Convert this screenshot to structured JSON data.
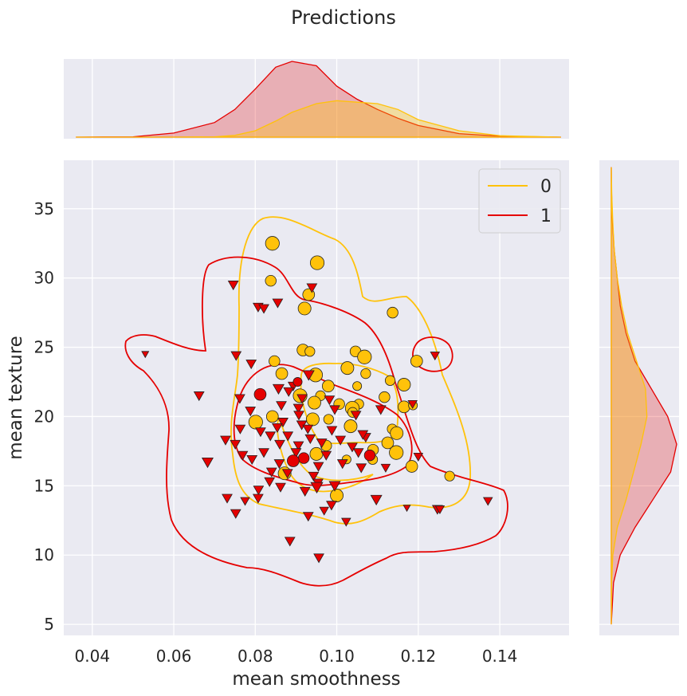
{
  "chart_data": {
    "type": "scatter",
    "title": "Predictions",
    "xlabel": "mean smoothness",
    "ylabel": "mean texture",
    "xlim": [
      0.033,
      0.157
    ],
    "ylim": [
      4.2,
      38.5
    ],
    "xticks": [
      "0.04",
      "0.06",
      "0.08",
      "0.10",
      "0.12",
      "0.14"
    ],
    "xtick_values": [
      0.04,
      0.06,
      0.08,
      0.1,
      0.12,
      0.14
    ],
    "yticks": [
      "5",
      "10",
      "15",
      "20",
      "25",
      "30",
      "35"
    ],
    "ytick_values": [
      5,
      10,
      15,
      20,
      25,
      30,
      35
    ],
    "grid": true,
    "legend": {
      "placement": "top-right",
      "entries": [
        {
          "label": "0",
          "color": "#ffc20a"
        },
        {
          "label": "1",
          "color": "#e50000"
        }
      ]
    },
    "marker_legend_note": "circle = correct-class marker, triangle = other; size varies",
    "colors": {
      "class0": "#ffc20a",
      "class1": "#e50000",
      "background": "#eaeaf2"
    },
    "series": [
      {
        "name": "0",
        "color": "#ffc20a",
        "points": [
          [
            0.0842,
            32.5,
            14,
            "o"
          ],
          [
            0.0952,
            31.1,
            14,
            "o"
          ],
          [
            0.0838,
            29.8,
            11,
            "o"
          ],
          [
            0.0931,
            28.8,
            12,
            "o"
          ],
          [
            0.0921,
            27.8,
            13,
            "o"
          ],
          [
            0.1137,
            27.5,
            11,
            "o"
          ],
          [
            0.0917,
            24.8,
            12,
            "o"
          ],
          [
            0.0934,
            24.7,
            10,
            "o"
          ],
          [
            0.1046,
            24.7,
            11,
            "o"
          ],
          [
            0.1068,
            24.3,
            14,
            "o"
          ],
          [
            0.0847,
            24.0,
            11,
            "o"
          ],
          [
            0.1196,
            24.0,
            12,
            "o"
          ],
          [
            0.1026,
            23.5,
            13,
            "o"
          ],
          [
            0.0865,
            23.1,
            12,
            "o"
          ],
          [
            0.0948,
            23.0,
            14,
            "o"
          ],
          [
            0.1071,
            23.1,
            10,
            "o"
          ],
          [
            0.1131,
            22.6,
            10,
            "o"
          ],
          [
            0.0979,
            22.2,
            12,
            "o"
          ],
          [
            0.105,
            22.2,
            9,
            "o"
          ],
          [
            0.1165,
            22.3,
            13,
            "o"
          ],
          [
            0.091,
            21.5,
            14,
            "o"
          ],
          [
            0.096,
            21.5,
            10,
            "o"
          ],
          [
            0.1117,
            21.4,
            11,
            "o"
          ],
          [
            0.0945,
            21.0,
            13,
            "o"
          ],
          [
            0.1006,
            20.9,
            11,
            "o"
          ],
          [
            0.1054,
            20.9,
            10,
            "o"
          ],
          [
            0.1038,
            20.6,
            14,
            "o"
          ],
          [
            0.1165,
            20.7,
            12,
            "o"
          ],
          [
            0.1187,
            20.8,
            9,
            "o"
          ],
          [
            0.1039,
            20.3,
            10,
            "o"
          ],
          [
            0.0842,
            20.0,
            12,
            "o"
          ],
          [
            0.0941,
            19.8,
            13,
            "o"
          ],
          [
            0.0801,
            19.6,
            14,
            "o"
          ],
          [
            0.098,
            19.8,
            10,
            "o"
          ],
          [
            0.1034,
            19.3,
            13,
            "o"
          ],
          [
            0.1136,
            19.1,
            10,
            "o"
          ],
          [
            0.1147,
            18.8,
            13,
            "o"
          ],
          [
            0.1125,
            18.1,
            12,
            "o"
          ],
          [
            0.0974,
            17.9,
            11,
            "o"
          ],
          [
            0.1089,
            17.6,
            11,
            "o"
          ],
          [
            0.095,
            17.3,
            13,
            "o"
          ],
          [
            0.1146,
            17.4,
            14,
            "o"
          ],
          [
            0.1024,
            16.9,
            9,
            "o"
          ],
          [
            0.1088,
            16.9,
            10,
            "o"
          ],
          [
            0.1184,
            16.4,
            12,
            "o"
          ],
          [
            0.0872,
            15.9,
            13,
            "o"
          ],
          [
            0.1277,
            15.7,
            10,
            "o"
          ],
          [
            0.1,
            14.3,
            13,
            "o"
          ]
        ]
      },
      {
        "name": "1",
        "color": "#e50000",
        "points": [
          [
            0.0939,
            29.3,
            10,
            "v"
          ],
          [
            0.0746,
            29.5,
            10,
            "v"
          ],
          [
            0.0855,
            28.2,
            10,
            "v"
          ],
          [
            0.0807,
            27.9,
            10,
            "v"
          ],
          [
            0.0821,
            27.8,
            10,
            "v"
          ],
          [
            0.053,
            24.5,
            7,
            "v"
          ],
          [
            0.0753,
            24.4,
            10,
            "v"
          ],
          [
            0.079,
            23.8,
            10,
            "v"
          ],
          [
            0.1241,
            24.4,
            9,
            "v"
          ],
          [
            0.0931,
            23.0,
            11,
            "v"
          ],
          [
            0.0893,
            22.2,
            10,
            "v"
          ],
          [
            0.0904,
            22.5,
            9,
            "o"
          ],
          [
            0.0857,
            22.0,
            11,
            "v"
          ],
          [
            0.0882,
            21.8,
            10,
            "v"
          ],
          [
            0.0915,
            21.3,
            10,
            "v"
          ],
          [
            0.0812,
            21.6,
            12,
            "o"
          ],
          [
            0.0662,
            21.5,
            10,
            "v"
          ],
          [
            0.0762,
            21.3,
            10,
            "v"
          ],
          [
            0.0982,
            21.2,
            10,
            "v"
          ],
          [
            0.0864,
            20.8,
            10,
            "v"
          ],
          [
            0.0906,
            20.6,
            10,
            "v"
          ],
          [
            0.0788,
            20.4,
            10,
            "v"
          ],
          [
            0.0995,
            20.5,
            10,
            "v"
          ],
          [
            0.0907,
            20.1,
            10,
            "v"
          ],
          [
            0.1047,
            20.1,
            10,
            "v"
          ],
          [
            0.0868,
            19.6,
            10,
            "v"
          ],
          [
            0.1186,
            20.9,
            9,
            "v"
          ],
          [
            0.0763,
            19.1,
            10,
            "v"
          ],
          [
            0.1108,
            20.5,
            10,
            "v"
          ],
          [
            0.0854,
            19.2,
            10,
            "v"
          ],
          [
            0.0914,
            19.4,
            10,
            "v"
          ],
          [
            0.0929,
            19.1,
            10,
            "v"
          ],
          [
            0.0988,
            19.0,
            10,
            "v"
          ],
          [
            0.0813,
            18.9,
            10,
            "v"
          ],
          [
            0.0837,
            18.6,
            10,
            "v"
          ],
          [
            0.088,
            18.6,
            10,
            "v"
          ],
          [
            0.0935,
            18.4,
            10,
            "v"
          ],
          [
            0.1009,
            18.3,
            10,
            "v"
          ],
          [
            0.1071,
            18.5,
            10,
            "v"
          ],
          [
            0.0727,
            18.3,
            10,
            "v"
          ],
          [
            0.0751,
            18.0,
            10,
            "v"
          ],
          [
            0.086,
            18.0,
            10,
            "v"
          ],
          [
            0.0906,
            17.9,
            10,
            "v"
          ],
          [
            0.0963,
            18.1,
            10,
            "v"
          ],
          [
            0.1038,
            17.8,
            10,
            "v"
          ],
          [
            0.1064,
            18.7,
            10,
            "v"
          ],
          [
            0.0769,
            17.2,
            10,
            "v"
          ],
          [
            0.0821,
            17.4,
            10,
            "v"
          ],
          [
            0.09,
            17.4,
            10,
            "v"
          ],
          [
            0.0919,
            17.0,
            11,
            "o"
          ],
          [
            0.0974,
            17.2,
            10,
            "v"
          ],
          [
            0.1053,
            17.4,
            10,
            "v"
          ],
          [
            0.1081,
            17.2,
            11,
            "o"
          ],
          [
            0.12,
            17.1,
            9,
            "v"
          ],
          [
            0.0683,
            16.7,
            11,
            "v"
          ],
          [
            0.0792,
            16.9,
            10,
            "v"
          ],
          [
            0.0859,
            16.6,
            10,
            "v"
          ],
          [
            0.0893,
            16.8,
            12,
            "o"
          ],
          [
            0.0955,
            16.4,
            10,
            "v"
          ],
          [
            0.1014,
            16.6,
            10,
            "v"
          ],
          [
            0.106,
            16.3,
            10,
            "v"
          ],
          [
            0.112,
            16.3,
            9,
            "v"
          ],
          [
            0.084,
            16.0,
            10,
            "v"
          ],
          [
            0.0879,
            15.9,
            10,
            "v"
          ],
          [
            0.0943,
            15.7,
            10,
            "v"
          ],
          [
            0.0835,
            15.3,
            10,
            "v"
          ],
          [
            0.0954,
            15.2,
            10,
            "v"
          ],
          [
            0.0862,
            14.9,
            10,
            "v"
          ],
          [
            0.0951,
            14.9,
            12,
            "v"
          ],
          [
            0.0808,
            14.7,
            10,
            "v"
          ],
          [
            0.0922,
            14.6,
            10,
            "v"
          ],
          [
            0.0995,
            15.0,
            11,
            "v"
          ],
          [
            0.0731,
            14.1,
            10,
            "v"
          ],
          [
            0.0807,
            14.1,
            10,
            "v"
          ],
          [
            0.0775,
            13.9,
            9,
            "v"
          ],
          [
            0.0987,
            13.6,
            10,
            "v"
          ],
          [
            0.1097,
            14.0,
            11,
            "v"
          ],
          [
            0.1172,
            13.4,
            7,
            "v"
          ],
          [
            0.1247,
            13.3,
            10,
            "v"
          ],
          [
            0.1253,
            13.3,
            9,
            "v"
          ],
          [
            0.1371,
            13.9,
            9,
            "v"
          ],
          [
            0.0752,
            13.0,
            10,
            "v"
          ],
          [
            0.0969,
            13.2,
            9,
            "v"
          ],
          [
            0.093,
            12.8,
            10,
            "v"
          ],
          [
            0.1023,
            12.4,
            9,
            "v"
          ],
          [
            0.0885,
            11.0,
            10,
            "v"
          ],
          [
            0.0956,
            9.8,
            10,
            "v"
          ]
        ]
      }
    ],
    "marginal_x_density": {
      "x": [
        0.036,
        0.05,
        0.06,
        0.07,
        0.075,
        0.08,
        0.085,
        0.089,
        0.095,
        0.1,
        0.105,
        0.11,
        0.115,
        0.12,
        0.13,
        0.14,
        0.155
      ],
      "class0": [
        0,
        0,
        0,
        0.1,
        0.6,
        2.2,
        5.5,
        8.5,
        11.5,
        12.5,
        12,
        11.5,
        9.5,
        6,
        2.2,
        0.5,
        0
      ],
      "class1": [
        0,
        0.1,
        1.4,
        5,
        9.5,
        16.5,
        24,
        26,
        24.5,
        17.5,
        13,
        9.5,
        6.5,
        4,
        1.2,
        0.3,
        0
      ]
    },
    "marginal_y_density": {
      "y": [
        5,
        8,
        10,
        12,
        14,
        16,
        18,
        20,
        22,
        24,
        26,
        28,
        30,
        32,
        34,
        36,
        38
      ],
      "class0": [
        0,
        0.2,
        1,
        4,
        10,
        15,
        20,
        24,
        23,
        17,
        11,
        7,
        4,
        2,
        1,
        0.3,
        0
      ],
      "class1": [
        0,
        1.5,
        6,
        16,
        28,
        40,
        44,
        38,
        27,
        16,
        10,
        6,
        4,
        2,
        0.8,
        0.2,
        0
      ]
    }
  }
}
